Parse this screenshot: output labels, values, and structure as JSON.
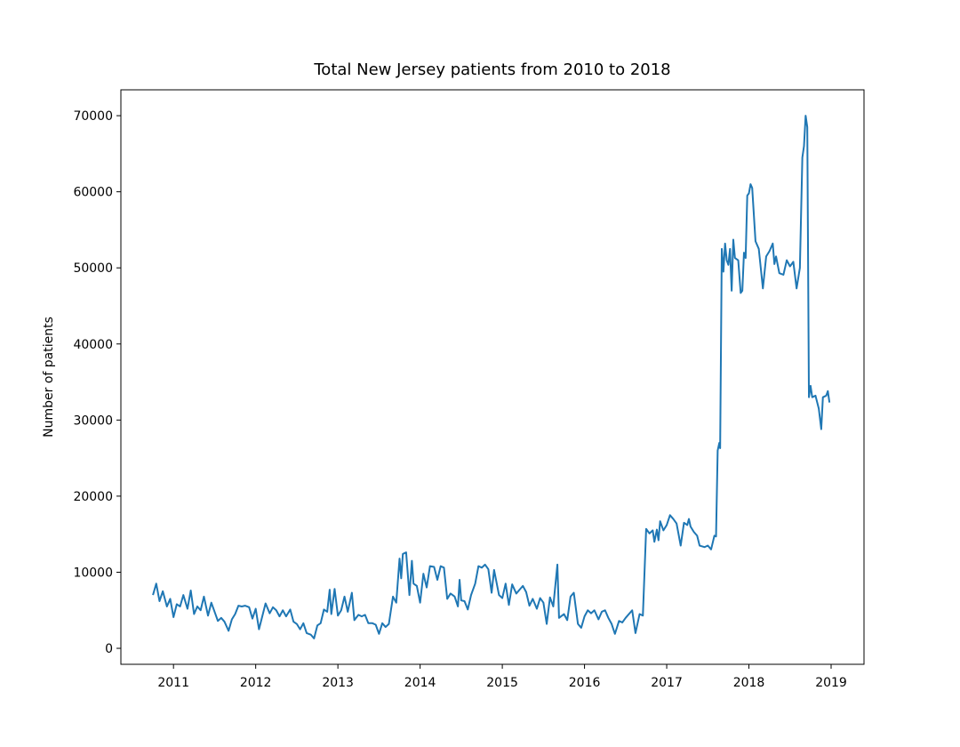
{
  "chart_data": {
    "type": "line",
    "title": "Total New Jersey patients from 2010 to 2018",
    "ylabel": "Number of patients",
    "xlim": [
      2010.36,
      2019.4
    ],
    "ylim": [
      -2100,
      73400
    ],
    "xticks": [
      2011,
      2012,
      2013,
      2014,
      2015,
      2016,
      2017,
      2018,
      2019
    ],
    "yticks": [
      0,
      10000,
      20000,
      30000,
      40000,
      50000,
      60000,
      70000
    ],
    "grid": false,
    "x": [
      2010.75,
      2010.79,
      2010.83,
      2010.87,
      2010.92,
      2010.96,
      2011.0,
      2011.04,
      2011.08,
      2011.12,
      2011.17,
      2011.21,
      2011.25,
      2011.29,
      2011.33,
      2011.37,
      2011.42,
      2011.46,
      2011.5,
      2011.54,
      2011.58,
      2011.62,
      2011.67,
      2011.71,
      2011.75,
      2011.79,
      2011.83,
      2011.87,
      2011.92,
      2011.96,
      2012.0,
      2012.04,
      2012.08,
      2012.12,
      2012.17,
      2012.21,
      2012.25,
      2012.29,
      2012.33,
      2012.37,
      2012.42,
      2012.46,
      2012.5,
      2012.54,
      2012.58,
      2012.62,
      2012.67,
      2012.71,
      2012.75,
      2012.79,
      2012.83,
      2012.87,
      2012.9,
      2012.92,
      2012.96,
      2013.0,
      2013.04,
      2013.08,
      2013.12,
      2013.17,
      2013.2,
      2013.25,
      2013.29,
      2013.33,
      2013.37,
      2013.42,
      2013.46,
      2013.5,
      2013.54,
      2013.58,
      2013.62,
      2013.67,
      2013.71,
      2013.75,
      2013.77,
      2013.79,
      2013.83,
      2013.87,
      2013.9,
      2013.92,
      2013.96,
      2014.0,
      2014.04,
      2014.08,
      2014.12,
      2014.17,
      2014.21,
      2014.25,
      2014.29,
      2014.33,
      2014.37,
      2014.42,
      2014.46,
      2014.48,
      2014.5,
      2014.54,
      2014.58,
      2014.62,
      2014.67,
      2014.71,
      2014.75,
      2014.79,
      2014.83,
      2014.87,
      2014.9,
      2014.96,
      2015.0,
      2015.04,
      2015.08,
      2015.12,
      2015.17,
      2015.21,
      2015.25,
      2015.29,
      2015.33,
      2015.37,
      2015.42,
      2015.46,
      2015.5,
      2015.54,
      2015.58,
      2015.62,
      2015.67,
      2015.69,
      2015.75,
      2015.79,
      2015.83,
      2015.87,
      2015.92,
      2015.96,
      2016.0,
      2016.04,
      2016.08,
      2016.12,
      2016.17,
      2016.21,
      2016.25,
      2016.29,
      2016.33,
      2016.37,
      2016.42,
      2016.46,
      2016.5,
      2016.58,
      2016.62,
      2016.67,
      2016.71,
      2016.75,
      2016.79,
      2016.83,
      2016.85,
      2016.88,
      2016.9,
      2016.92,
      2016.96,
      2017.0,
      2017.04,
      2017.08,
      2017.12,
      2017.17,
      2017.21,
      2017.25,
      2017.27,
      2017.29,
      2017.33,
      2017.37,
      2017.4,
      2017.46,
      2017.5,
      2017.54,
      2017.58,
      2017.6,
      2017.62,
      2017.64,
      2017.65,
      2017.67,
      2017.69,
      2017.71,
      2017.73,
      2017.75,
      2017.77,
      2017.79,
      2017.81,
      2017.83,
      2017.87,
      2017.9,
      2017.92,
      2017.94,
      2017.96,
      2017.98,
      2018.0,
      2018.02,
      2018.04,
      2018.08,
      2018.12,
      2018.17,
      2018.21,
      2018.25,
      2018.29,
      2018.31,
      2018.33,
      2018.37,
      2018.42,
      2018.46,
      2018.5,
      2018.54,
      2018.58,
      2018.62,
      2018.65,
      2018.67,
      2018.69,
      2018.71,
      2018.73,
      2018.75,
      2018.77,
      2018.81,
      2018.85,
      2018.88,
      2018.9,
      2018.94,
      2018.96,
      2018.98
    ],
    "series": [
      {
        "color": "#1f77b4",
        "values": [
          7000,
          8500,
          6200,
          7500,
          5500,
          6500,
          4100,
          5800,
          5500,
          7000,
          5200,
          7600,
          4500,
          5500,
          5000,
          6800,
          4300,
          6000,
          4800,
          3600,
          4000,
          3500,
          2300,
          3800,
          4500,
          5600,
          5500,
          5600,
          5400,
          3900,
          5200,
          2500,
          4200,
          5900,
          4600,
          5400,
          5000,
          4200,
          5000,
          4200,
          5100,
          3500,
          3200,
          2500,
          3300,
          2000,
          1800,
          1300,
          3000,
          3300,
          5100,
          4800,
          7700,
          4500,
          7800,
          4300,
          5000,
          6800,
          4800,
          7300,
          3700,
          4400,
          4200,
          4400,
          3300,
          3300,
          3100,
          1900,
          3300,
          2800,
          3200,
          6800,
          6000,
          11800,
          9200,
          12400,
          12600,
          7000,
          11500,
          8500,
          8200,
          6000,
          9800,
          8000,
          10800,
          10700,
          9000,
          10800,
          10600,
          6500,
          7200,
          6800,
          5500,
          9000,
          6300,
          6200,
          5100,
          7000,
          8500,
          10800,
          10600,
          11000,
          10400,
          7300,
          10300,
          7000,
          6600,
          8500,
          5700,
          8400,
          7200,
          7700,
          8200,
          7400,
          5600,
          6500,
          5200,
          6600,
          6000,
          3200,
          6700,
          5500,
          11000,
          4000,
          4500,
          3700,
          6800,
          7300,
          3200,
          2700,
          4200,
          5000,
          4600,
          5000,
          3800,
          4800,
          5000,
          4000,
          3200,
          1900,
          3600,
          3400,
          4000,
          5000,
          2000,
          4500,
          4300,
          15700,
          15100,
          15500,
          14000,
          15600,
          14200,
          16700,
          15500,
          16200,
          17500,
          17000,
          16400,
          13500,
          16500,
          16200,
          17000,
          16000,
          15300,
          14800,
          13500,
          13300,
          13500,
          13000,
          14800,
          14700,
          26000,
          27000,
          26300,
          52500,
          49500,
          53200,
          51000,
          50400,
          52500,
          47000,
          53700,
          51300,
          51000,
          46700,
          47000,
          52000,
          51300,
          59500,
          59800,
          61000,
          60500,
          53500,
          52500,
          47300,
          51500,
          52200,
          53200,
          50500,
          51500,
          49300,
          49100,
          51000,
          50200,
          50800,
          47300,
          50000,
          64500,
          66000,
          70000,
          68500,
          33000,
          34500,
          33000,
          33200,
          31500,
          28800,
          33000,
          33200,
          33800,
          32300
        ]
      }
    ]
  }
}
